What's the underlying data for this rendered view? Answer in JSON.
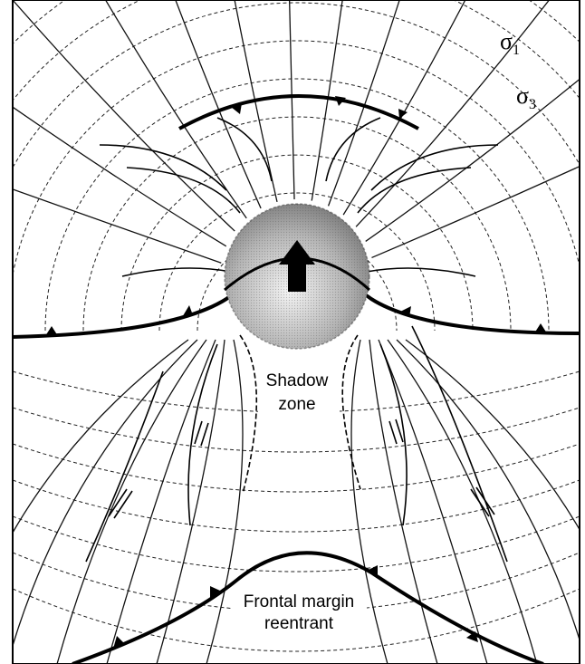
{
  "labels": {
    "sigma1": {
      "symbol": "σ",
      "subscript": "1"
    },
    "sigma3": {
      "symbol": "σ",
      "subscript": "3"
    },
    "shadow_zone": [
      "Shadow",
      "zone"
    ],
    "frontal_margin": [
      "Frontal margin",
      "reentrant"
    ]
  }
}
